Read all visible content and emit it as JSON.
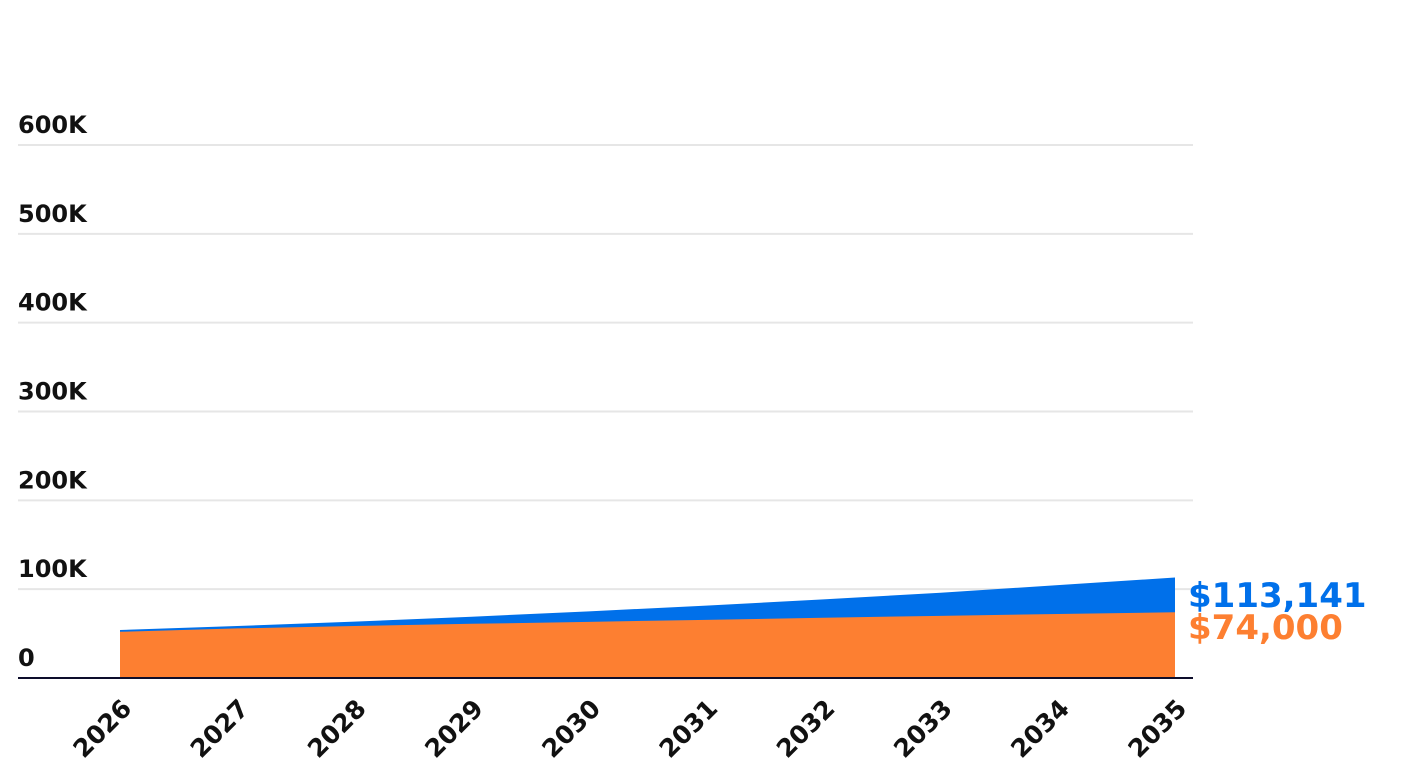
{
  "chart_data": {
    "type": "area",
    "x": [
      "2026",
      "2027",
      "2028",
      "2029",
      "2030",
      "2031",
      "2032",
      "2033",
      "2034",
      "2035"
    ],
    "series": [
      {
        "color": "#0070ea",
        "values": [
          54000,
          58500,
          63500,
          69000,
          75000,
          81500,
          88500,
          96000,
          104500,
          113141
        ],
        "end_label": "$113,141"
      },
      {
        "color": "#fd7f31",
        "values": [
          52000,
          55800,
          58500,
          61000,
          63200,
          65500,
          67800,
          70000,
          72000,
          74000
        ],
        "end_label": "$74,000"
      }
    ],
    "y_ticks": [
      "0",
      "100K",
      "200K",
      "300K",
      "400K",
      "500K",
      "600K"
    ],
    "ylim": [
      0,
      600000
    ],
    "grid": true,
    "legend": "none"
  }
}
